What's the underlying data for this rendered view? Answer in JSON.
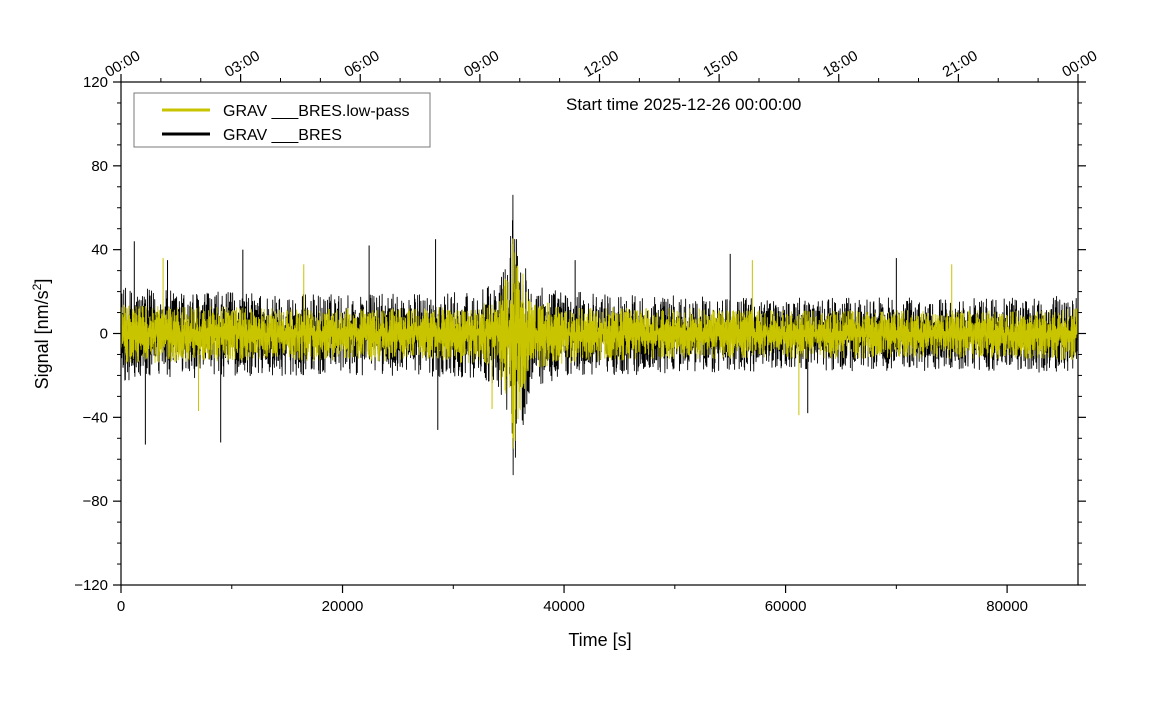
{
  "chart_data": {
    "type": "line",
    "title": "Start time 2025-12-26 00:00:00",
    "xlabel": "Time [s]",
    "ylabel": "Signal [nm/s²]",
    "ylabel_base": "Signal [nm/s",
    "ylabel_sup": "2",
    "ylabel_close": "]",
    "xlim": [
      0,
      86400
    ],
    "ylim": [
      -120,
      120
    ],
    "x_ticks": [
      0,
      20000,
      40000,
      60000,
      80000
    ],
    "x_tick_labels": [
      "0",
      "20000",
      "40000",
      "60000",
      "80000"
    ],
    "y_ticks": [
      -120,
      -80,
      -40,
      0,
      40,
      80,
      120
    ],
    "y_tick_labels": [
      "−120",
      "−80",
      "−40",
      "0",
      "40",
      "80",
      "120"
    ],
    "top_axis": {
      "ticks_seconds": [
        0,
        10800,
        21600,
        32400,
        43200,
        54000,
        64800,
        75600,
        86400
      ],
      "tick_labels": [
        "00:00",
        "03:00",
        "06:00",
        "09:00",
        "12:00",
        "15:00",
        "18:00",
        "21:00",
        "00:00"
      ]
    },
    "legend": {
      "position": "top-left",
      "entries": [
        {
          "label": "GRAV ___BRES.low-pass",
          "color": "#c8c400"
        },
        {
          "label": "GRAV ___BRES",
          "color": "#000000"
        }
      ]
    },
    "series": [
      {
        "name": "GRAV ___BRES",
        "color": "#000000",
        "description": "raw gravity residual, noise band about ±20 nm/s² with spikes to ±45, event near 35500 s reaching +78 / −74",
        "envelope": {
          "x": [
            0,
            3000,
            8000,
            15000,
            25000,
            32000,
            34000,
            35000,
            35500,
            36000,
            37000,
            40000,
            50000,
            60000,
            70000,
            80000,
            86400
          ],
          "upper": [
            22,
            21,
            20,
            19,
            19,
            20,
            24,
            40,
            78,
            48,
            26,
            20,
            18,
            17,
            17,
            17,
            18
          ],
          "lower": [
            -24,
            -22,
            -21,
            -20,
            -20,
            -21,
            -26,
            -48,
            -74,
            -52,
            -27,
            -21,
            -19,
            -18,
            -18,
            -18,
            -19
          ]
        },
        "spikes": [
          {
            "x": 1200,
            "y": 44
          },
          {
            "x": 2200,
            "y": -53
          },
          {
            "x": 4200,
            "y": 35
          },
          {
            "x": 9000,
            "y": -52
          },
          {
            "x": 11000,
            "y": 40
          },
          {
            "x": 22400,
            "y": 42
          },
          {
            "x": 28400,
            "y": 45
          },
          {
            "x": 28600,
            "y": -46
          },
          {
            "x": 41000,
            "y": 35
          },
          {
            "x": 55000,
            "y": 38
          },
          {
            "x": 62000,
            "y": -38
          },
          {
            "x": 70000,
            "y": 36
          }
        ]
      },
      {
        "name": "GRAV ___BRES.low-pass",
        "color": "#c8c400",
        "description": "low-pass filtered signal, band about ±13 nm/s², event near 35500 s reaching about ±55",
        "envelope": {
          "x": [
            0,
            3000,
            8000,
            15000,
            25000,
            32000,
            34000,
            35000,
            35500,
            36000,
            37000,
            40000,
            50000,
            60000,
            70000,
            80000,
            86400
          ],
          "upper": [
            14,
            13,
            13,
            12,
            12,
            13,
            16,
            32,
            56,
            36,
            17,
            13,
            12,
            11,
            11,
            11,
            12
          ],
          "lower": [
            -15,
            -14,
            -13,
            -13,
            -13,
            -14,
            -17,
            -36,
            -62,
            -38,
            -18,
            -14,
            -12,
            -12,
            -12,
            -12,
            -13
          ]
        },
        "spikes": [
          {
            "x": 3800,
            "y": 36
          },
          {
            "x": 7000,
            "y": -37
          },
          {
            "x": 16500,
            "y": 33
          },
          {
            "x": 33500,
            "y": -36
          },
          {
            "x": 57000,
            "y": 35
          },
          {
            "x": 61200,
            "y": -39
          },
          {
            "x": 75000,
            "y": 33
          }
        ]
      }
    ]
  }
}
